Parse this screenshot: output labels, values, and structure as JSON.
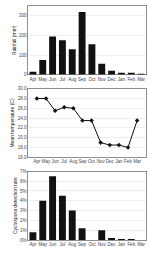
{
  "chart_data": [
    {
      "type": "bar",
      "categories": [
        "Apr",
        "May",
        "Jun",
        "Jul",
        "Aug",
        "Sep",
        "Oct",
        "Nov",
        "Dec",
        "Jan",
        "Feb",
        "Mar"
      ],
      "values": [
        15,
        75,
        195,
        175,
        130,
        320,
        155,
        55,
        20,
        10,
        10,
        5
      ],
      "color": "#111111",
      "ylabel": "Rainfall (mm)",
      "ylim": [
        0,
        350
      ],
      "yticks": [
        0,
        100,
        200,
        300
      ]
    },
    {
      "type": "line",
      "categories": [
        "Apr",
        "May",
        "Jun",
        "Jul",
        "Aug",
        "Sep",
        "Oct",
        "Nov",
        "Dec",
        "Jan",
        "Feb",
        "Mar"
      ],
      "values": [
        28.0,
        28.0,
        25.5,
        26.2,
        26.0,
        23.5,
        23.5,
        19.0,
        18.5,
        18.5,
        18.0,
        23.5
      ],
      "color": "#111111",
      "marker": "diamond",
      "ylabel": "Mean temperature (C)",
      "ylim": [
        16,
        30
      ],
      "yticks": [
        {
          "value": 16,
          "label": "16.0"
        },
        {
          "value": 18,
          "label": "18.0"
        },
        {
          "value": 20,
          "label": "20.0"
        },
        {
          "value": 22,
          "label": "22.0"
        },
        {
          "value": 24,
          "label": "24.0"
        },
        {
          "value": 26,
          "label": "26.0"
        },
        {
          "value": 28,
          "label": "28.0"
        },
        {
          "value": 30,
          "label": "30.0"
        }
      ]
    },
    {
      "type": "bar",
      "categories": [
        "Apr",
        "May",
        "Jun",
        "Jul",
        "Aug",
        "Sep",
        "Oct",
        "Nov",
        "Dec",
        "Jan",
        "Feb",
        "Mar"
      ],
      "values": [
        0.8,
        4.0,
        6.5,
        4.5,
        3.0,
        1.2,
        0.0,
        1.0,
        0.2,
        0.1,
        0.1,
        0.0
      ],
      "color": "#111111",
      "ylabel": "Cyclospora detection rate",
      "ylim": [
        0,
        7
      ],
      "yticks": [
        {
          "value": 0,
          "label": "0%"
        },
        {
          "value": 1,
          "label": "1%"
        },
        {
          "value": 2,
          "label": "2%"
        },
        {
          "value": 3,
          "label": "3%"
        },
        {
          "value": 4,
          "label": "4%"
        },
        {
          "value": 5,
          "label": "5%"
        },
        {
          "value": 6,
          "label": "6%"
        },
        {
          "value": 7,
          "label": "7%"
        }
      ]
    }
  ]
}
